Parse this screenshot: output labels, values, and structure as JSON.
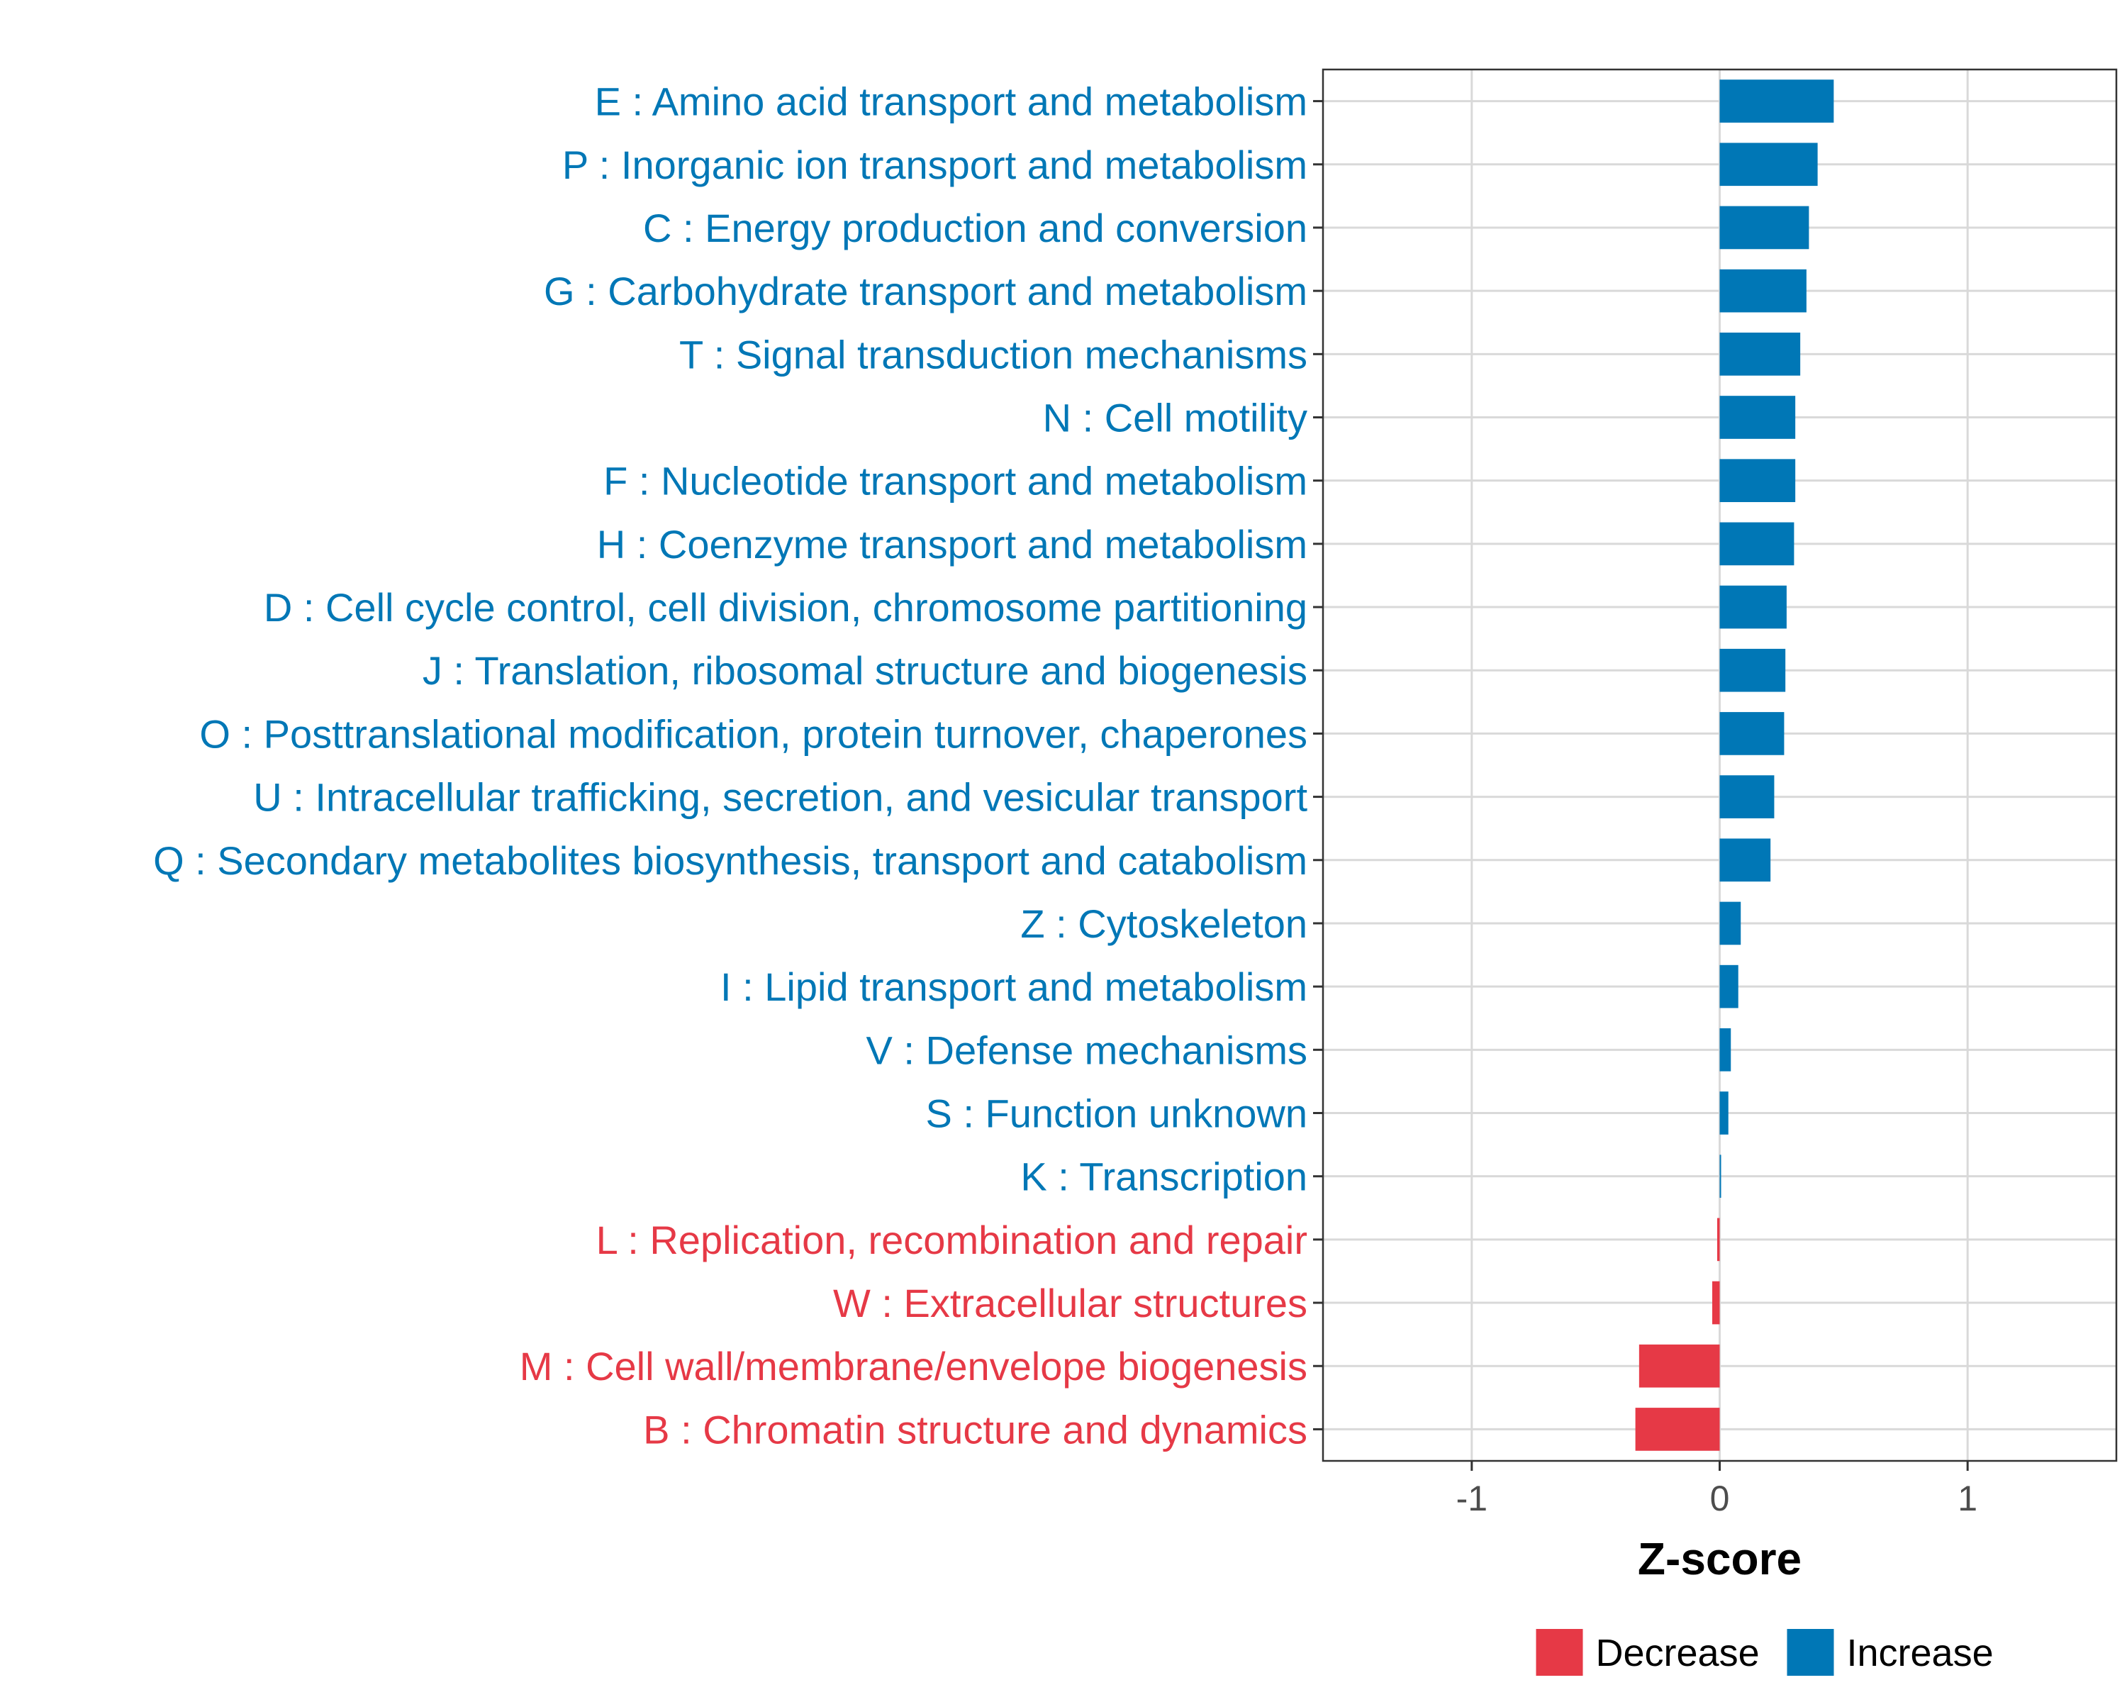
{
  "chart_data": {
    "type": "bar",
    "orientation": "horizontal",
    "title": "",
    "xlabel": "Z-score",
    "ylabel": "",
    "xlim": [
      -1.6,
      1.6
    ],
    "xticks": [
      -1,
      0,
      1
    ],
    "xtick_labels": [
      "-1",
      "0",
      "1"
    ],
    "grid": true,
    "legend_position": "bottom",
    "legend": [
      {
        "name": "Decrease",
        "color": "#E63946"
      },
      {
        "name": "Increase",
        "color": "#0077B6"
      }
    ],
    "categories": [
      "E : Amino acid transport and metabolism",
      "P : Inorganic ion transport and metabolism",
      "C : Energy production and conversion",
      "G : Carbohydrate transport and metabolism",
      "T : Signal transduction mechanisms",
      "N : Cell motility",
      "F : Nucleotide transport and metabolism",
      "H : Coenzyme transport and metabolism",
      "D : Cell cycle control, cell division, chromosome partitioning",
      "J : Translation, ribosomal structure and biogenesis",
      "O : Posttranslational modification, protein turnover, chaperones",
      "U : Intracellular trafficking, secretion, and vesicular transport",
      "Q : Secondary metabolites biosynthesis, transport and catabolism",
      "Z : Cytoskeleton",
      "I : Lipid transport and metabolism",
      "V : Defense mechanisms",
      "S : Function unknown",
      "K : Transcription",
      "L : Replication, recombination and repair",
      "W : Extracellular structures",
      "M : Cell wall/membrane/envelope biogenesis",
      "B : Chromatin structure and dynamics"
    ],
    "values": [
      0.46,
      0.395,
      0.36,
      0.35,
      0.325,
      0.305,
      0.305,
      0.3,
      0.27,
      0.265,
      0.26,
      0.22,
      0.205,
      0.085,
      0.075,
      0.045,
      0.035,
      0.005,
      -0.01,
      -0.03,
      -0.325,
      -0.34
    ],
    "groups": [
      "Increase",
      "Increase",
      "Increase",
      "Increase",
      "Increase",
      "Increase",
      "Increase",
      "Increase",
      "Increase",
      "Increase",
      "Increase",
      "Increase",
      "Increase",
      "Increase",
      "Increase",
      "Increase",
      "Increase",
      "Increase",
      "Decrease",
      "Decrease",
      "Decrease",
      "Decrease"
    ]
  }
}
